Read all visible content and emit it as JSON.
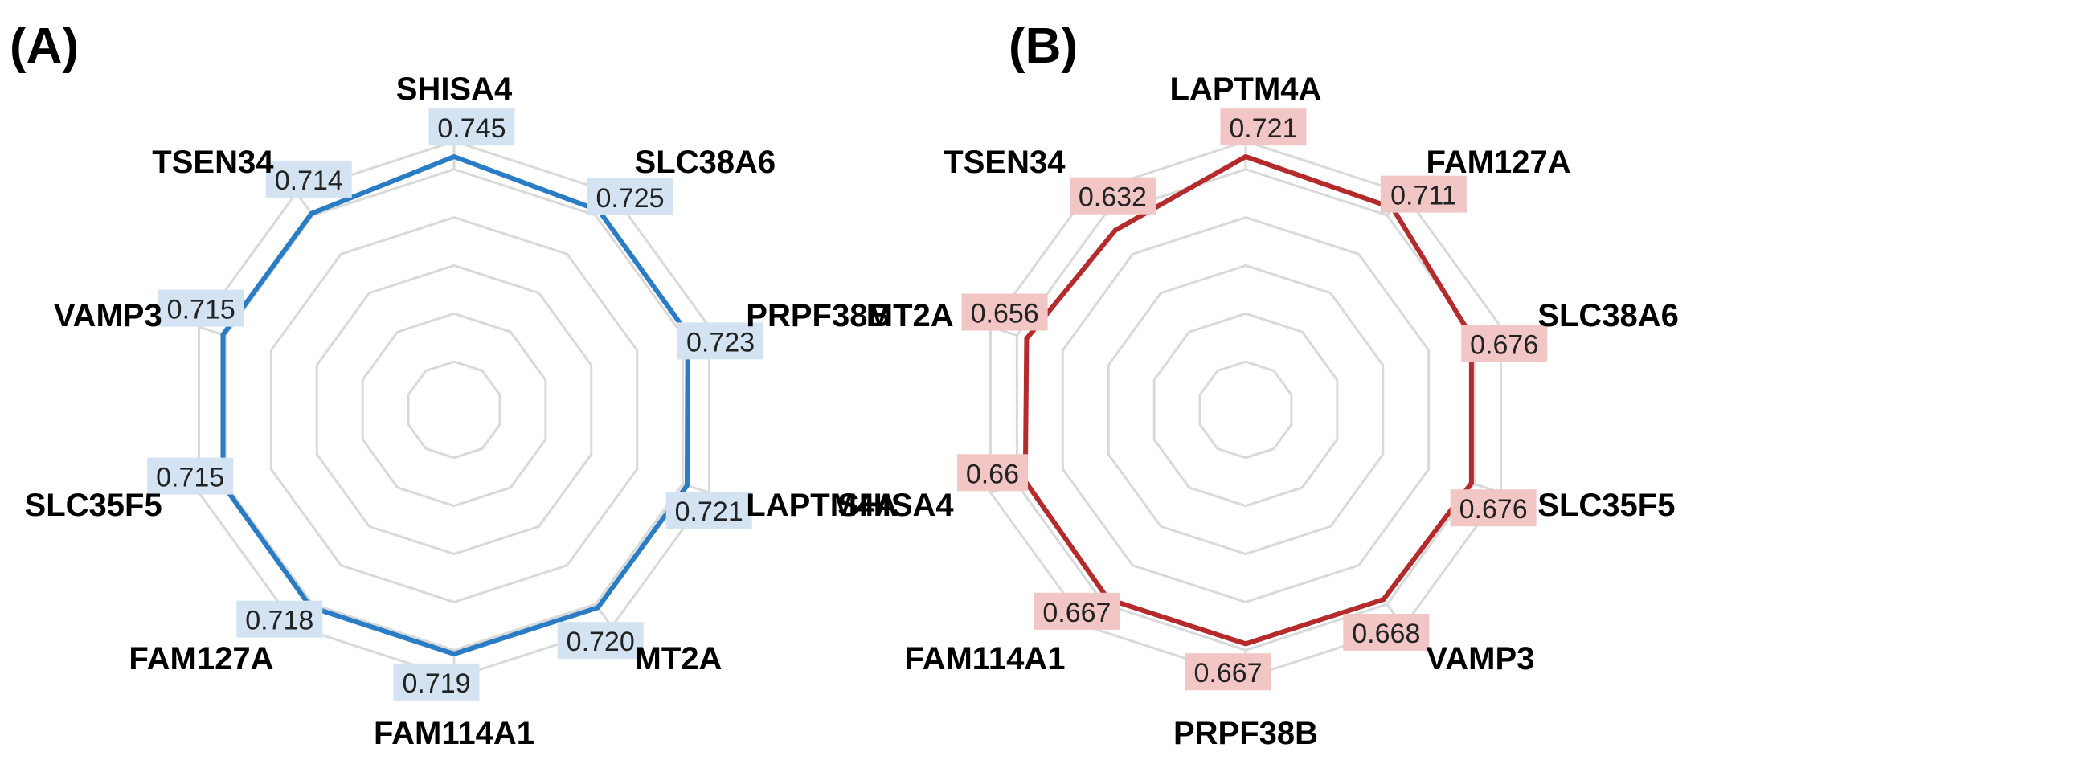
{
  "chart_data": [
    {
      "type": "radar",
      "panel_label": "(A)",
      "title": "",
      "grid": true,
      "color": "#2a7dc4",
      "label_bg": "#d4e3f2",
      "axes": [
        "SHISA4",
        "SLC38A6",
        "PRPF38B",
        "LAPTM4A",
        "MT2A",
        "FAM114A1",
        "FAM127A",
        "SLC35F5",
        "VAMP3",
        "TSEN34"
      ],
      "values": [
        0.745,
        0.725,
        0.723,
        0.721,
        0.72,
        0.719,
        0.718,
        0.715,
        0.715,
        0.714
      ],
      "value_labels": [
        "0.745",
        "0.725",
        "0.723",
        "0.721",
        "0.720",
        "0.719",
        "0.718",
        "0.715",
        "0.715",
        "0.714"
      ],
      "rlim": [
        0,
        0.745
      ]
    },
    {
      "type": "radar",
      "panel_label": "(B)",
      "title": "",
      "grid": true,
      "color": "#b52a2a",
      "label_bg": "#f3c6c6",
      "axes": [
        "LAPTM4A",
        "FAM127A",
        "SLC38A6",
        "SLC35F5",
        "VAMP3",
        "PRPF38B",
        "FAM114A1",
        "SHISA4",
        "MT2A",
        "TSEN34"
      ],
      "values": [
        0.721,
        0.711,
        0.676,
        0.676,
        0.668,
        0.667,
        0.667,
        0.66,
        0.656,
        0.632
      ],
      "value_labels": [
        "0.721",
        "0.711",
        "0.676",
        "0.676",
        "0.668",
        "0.667",
        "0.667",
        "0.66",
        "0.656",
        "0.632"
      ],
      "rlim": [
        0,
        0.721
      ]
    }
  ]
}
